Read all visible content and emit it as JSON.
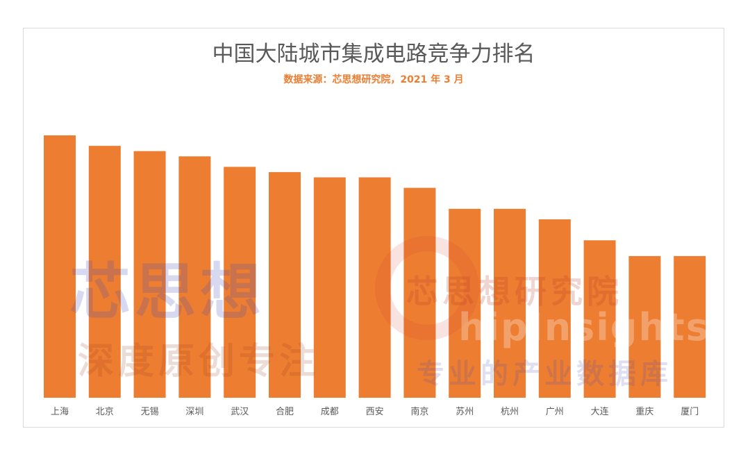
{
  "chart_data": {
    "type": "bar",
    "title": "中国大陆城市集成电路竞争力排名",
    "subtitle": "数据来源：芯思想研究院，2021 年 3 月",
    "categories": [
      "上海",
      "北京",
      "无锡",
      "深圳",
      "武汉",
      "合肥",
      "成都",
      "西安",
      "南京",
      "苏州",
      "杭州",
      "广州",
      "大连",
      "重庆",
      "厦门"
    ],
    "values": [
      100,
      96,
      94,
      92,
      88,
      86,
      84,
      84,
      80,
      72,
      72,
      68,
      60,
      54,
      54
    ],
    "ylim": [
      0,
      100
    ],
    "grid": false,
    "legend": "none",
    "bar_color": "#ed7d31",
    "label_color": "#595959"
  },
  "watermark": {
    "logo_cn": "芯思想",
    "slogan": "深度原创专注",
    "institute": "芯思想研究院",
    "brand_en": "hipInsights",
    "tagline": "专业的产业数据库"
  }
}
